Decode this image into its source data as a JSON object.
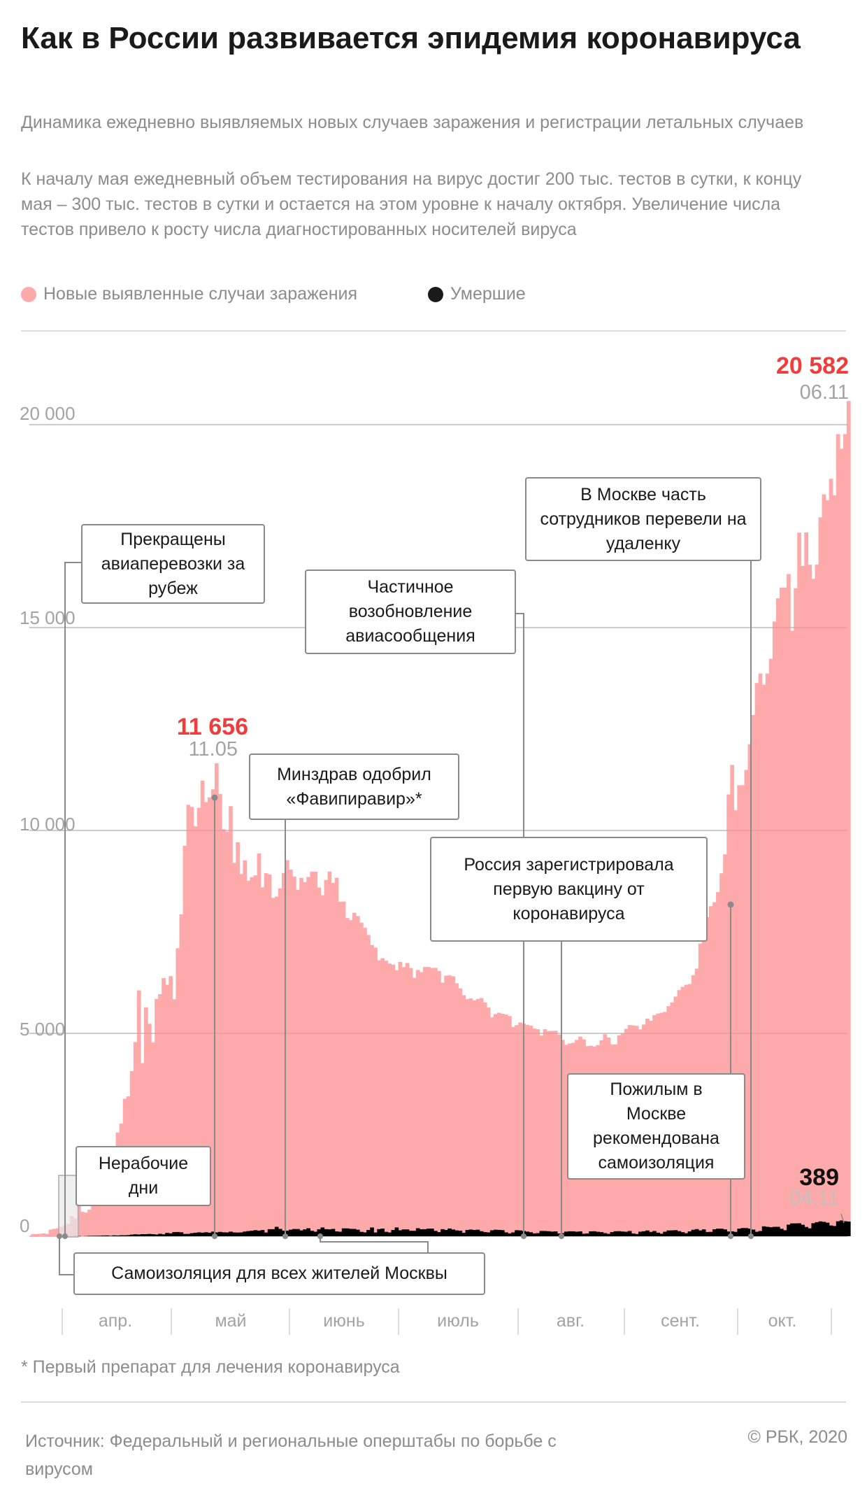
{
  "header": {
    "title": "Как в России развивается эпидемия коронавируса",
    "subtitle": "Динамика ежедневно выявляемых новых случаев заражения и регистрации летальных случаев",
    "description": "К началу мая ежедневный объем тестирования на вирус достиг 200 тыс. тестов в сутки, к концу мая – 300 тыс. тестов в сутки и остается на этом уровне к началу октября. Увеличение числа тестов привело к росту числа диагностированных носителей вируса"
  },
  "colors": {
    "cases": "#ffaaaa",
    "deaths": "#000000",
    "highlight": "#f03c3c"
  },
  "chart_data": {
    "type": "bar",
    "title": "Как в России развивается эпидемия коронавируса",
    "xlabel": "",
    "ylabel": "",
    "ylim": [
      0,
      20000
    ],
    "yticks": [
      "20 000",
      "15 000",
      "10 000",
      "5 000",
      "0"
    ],
    "x_start": "20.03",
    "x_end": "06.11",
    "months": [
      "апр.",
      "май",
      "июнь",
      "июль",
      "авг.",
      "сент.",
      "окт."
    ],
    "legend": [
      "Новые выявленные случаи заражения",
      "Умершие"
    ],
    "legend_placement": "top-left",
    "series": [
      {
        "name": "Новые выявленные случаи заражения",
        "values": [
          53,
          53,
          61,
          71,
          57,
          163,
          182,
          196,
          228,
          270,
          302,
          501,
          440,
          771,
          601,
          582,
          658,
          954,
          1154,
          1175,
          1459,
          1786,
          1667,
          2186,
          2558,
          2774,
          3388,
          3448,
          4070,
          4785,
          6060,
          4268,
          5642,
          5236,
          4774,
          5849,
          5966,
          6361,
          6198,
          6411,
          5841,
          7099,
          7933,
          9623,
          10633,
          10581,
          10102,
          10559,
          11231,
          10699,
          10817,
          11012,
          11656,
          10899,
          10028,
          9974,
          10598,
          9200,
          9709,
          8926,
          9263,
          8764,
          8849,
          8894,
          9434,
          8599,
          8946,
          8915,
          8338,
          8371,
          8572,
          8952,
          9268,
          9035,
          8863,
          8536,
          8831,
          8726,
          8855,
          8984,
          8985,
          8595,
          8404,
          8779,
          8987,
          8706,
          8835,
          8246,
          8248,
          7843,
          7790,
          7972,
          7889,
          7728,
          7600,
          7425,
          7176,
          7113,
          6800,
          6852,
          6791,
          6719,
          6693,
          6556,
          6760,
          6632,
          6736,
          6611,
          6368,
          6562,
          6509,
          6635,
          6636,
          6611,
          6615,
          6537,
          6248,
          6422,
          6428,
          6406,
          6234,
          6109,
          5940,
          5842,
          5862,
          5811,
          5848,
          5871,
          5765,
          5635,
          5395,
          5475,
          5509,
          5482,
          5462,
          5427,
          5159,
          5204,
          5267,
          5241,
          5212,
          5189,
          5118,
          5102,
          4945,
          5102,
          5057,
          5061,
          5065,
          4969,
          4839,
          4718,
          4748,
          4767,
          4838,
          4921,
          4852,
          4687,
          4696,
          4676,
          4711,
          4829,
          4980,
          4897,
          4729,
          4729,
          4952,
          4995,
          5110,
          5205,
          5195,
          5185,
          5099,
          5218,
          5363,
          5310,
          5449,
          5488,
          5509,
          5529,
          5670,
          5762,
          5905,
          6065,
          6148,
          6196,
          6215,
          6431,
          6595,
          7212,
          7523,
          7867,
          8135,
          8232,
          8481,
          8945,
          9412,
          10888,
          11615,
          10499,
          11115,
          11115,
          11493,
          12126,
          12846,
          13634,
          13868,
          13592,
          13868,
          14231,
          15150,
          15722,
          15982,
          15982,
          16319,
          14922,
          15971,
          17340,
          16521,
          17347,
          16550,
          16202,
          16550,
          17717,
          18283,
          18140,
          18665,
          18257,
          19768,
          19404,
          19768,
          20582
        ]
      },
      {
        "name": "Умершие",
        "values": [
          0,
          1,
          0,
          0,
          1,
          1,
          0,
          1,
          0,
          1,
          1,
          2,
          4,
          7,
          0,
          4,
          9,
          11,
          11,
          13,
          18,
          20,
          11,
          22,
          18,
          24,
          23,
          28,
          41,
          48,
          42,
          52,
          51,
          57,
          50,
          42,
          60,
          47,
          82,
          72,
          101,
          105,
          97,
          57,
          58,
          76,
          86,
          96,
          88,
          98,
          88,
          114,
          94,
          107,
          96,
          93,
          113,
          94,
          91,
          94,
          115,
          127,
          135,
          150,
          139,
          153,
          92,
          174,
          174,
          232,
          181,
          138,
          138,
          162,
          178,
          178,
          144,
          169,
          197,
          134,
          112,
          171,
          216,
          174,
          169,
          181,
          119,
          111,
          194,
          193,
          182,
          181,
          161,
          109,
          95,
          154,
          216,
          92,
          176,
          188,
          109,
          93,
          154,
          216,
          147,
          168,
          168,
          135,
          134,
          198,
          173,
          174,
          187,
          188,
          132,
          102,
          175,
          155,
          191,
          166,
          144,
          135,
          85,
          154,
          165,
          154,
          161,
          124,
          103,
          94,
          147,
          161,
          156,
          150,
          95,
          70,
          95,
          149,
          144,
          129,
          114,
          98,
          70,
          77,
          130,
          129,
          124,
          114,
          119,
          68,
          76,
          114,
          122,
          121,
          112,
          119,
          61,
          68,
          121,
          123,
          110,
          101,
          77,
          59,
          103,
          123,
          125,
          116,
          110,
          129,
          69,
          55,
          112,
          123,
          143,
          106,
          128,
          88,
          62,
          111,
          143,
          145,
          150,
          126,
          100,
          75,
          119,
          160,
          176,
          143,
          169,
          105,
          108,
          170,
          186,
          186,
          169,
          117,
          122,
          107,
          186,
          202,
          201,
          186,
          164,
          110,
          129,
          244,
          232,
          222,
          232,
          233,
          184,
          148,
          286,
          317,
          317,
          320,
          283,
          229,
          195,
          320,
          346,
          366,
          355,
          334,
          265,
          252,
          368,
          389,
          370,
          362
        ]
      }
    ],
    "annotations": {
      "peak1": {
        "value": "11 656",
        "date": "11.05"
      },
      "peak2": {
        "value": "20 582",
        "date": "06.11"
      },
      "deaths_peak": {
        "value": "389",
        "date": "04.11"
      },
      "events": [
        "Самоизоляция для всех жителей Москвы",
        "Нерабочие дни",
        "Прекращены авиаперевозки за рубеж",
        "Минздрав одобрил «Фавипиравир»*",
        "Частичное возобновление авиасообщения",
        "Россия зарегистрировала первую вакцину от коронавируса",
        "Пожилым в Москве рекомендована самоизоляция",
        "В Москве часть сотрудников перевели на удаленку"
      ]
    }
  },
  "footer": {
    "footnote": "* Первый препарат для лечения коронавируса",
    "source": "Источник: Федеральный и региональные оперштабы по борьбе с вирусом",
    "copyright": "© РБК, 2020"
  }
}
